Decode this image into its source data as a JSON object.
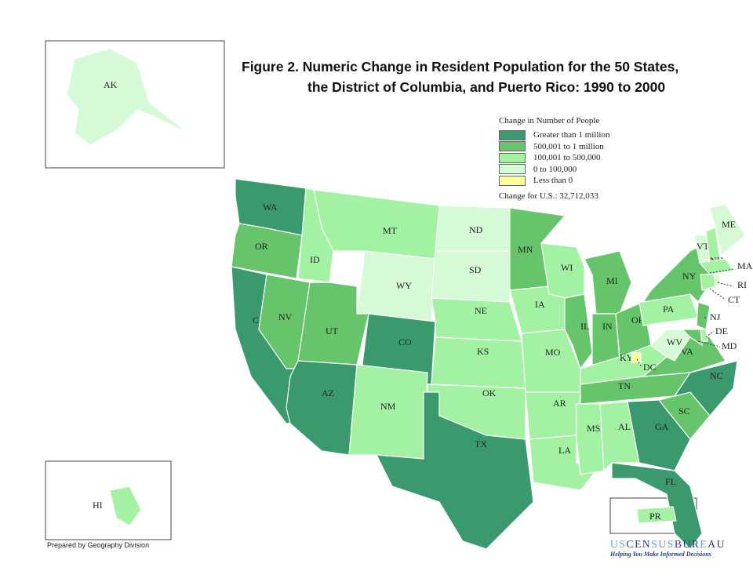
{
  "title": {
    "line1": "Figure 2.  Numeric Change in Resident Population for the 50 States,",
    "line2": "the District of Columbia, and Puerto Rico: 1990 to 2000"
  },
  "legend": {
    "title": "Change in Number of People",
    "items": [
      {
        "label": "Greater than 1 million",
        "color": "#3a9a6e"
      },
      {
        "label": "500,001 to 1 million",
        "color": "#66c46a"
      },
      {
        "label": "100,001 to 500,000",
        "color": "#a3f2a3"
      },
      {
        "label": "0 to 100,000",
        "color": "#d6fad6"
      },
      {
        "label": "Less than 0",
        "color": "#ffff99"
      }
    ],
    "total": "Change for U.S.: 32,712,033"
  },
  "states": [
    {
      "abbr": "WA",
      "cat": 0
    },
    {
      "abbr": "OR",
      "cat": 1
    },
    {
      "abbr": "CA",
      "cat": 0
    },
    {
      "abbr": "NV",
      "cat": 1
    },
    {
      "abbr": "ID",
      "cat": 2
    },
    {
      "abbr": "MT",
      "cat": 2
    },
    {
      "abbr": "WY",
      "cat": 3
    },
    {
      "abbr": "UT",
      "cat": 1
    },
    {
      "abbr": "CO",
      "cat": 0
    },
    {
      "abbr": "AZ",
      "cat": 0
    },
    {
      "abbr": "NM",
      "cat": 2
    },
    {
      "abbr": "ND",
      "cat": 3
    },
    {
      "abbr": "SD",
      "cat": 3
    },
    {
      "abbr": "NE",
      "cat": 2
    },
    {
      "abbr": "KS",
      "cat": 2
    },
    {
      "abbr": "OK",
      "cat": 2
    },
    {
      "abbr": "TX",
      "cat": 0
    },
    {
      "abbr": "MN",
      "cat": 1
    },
    {
      "abbr": "IA",
      "cat": 2
    },
    {
      "abbr": "MO",
      "cat": 2
    },
    {
      "abbr": "AR",
      "cat": 2
    },
    {
      "abbr": "LA",
      "cat": 2
    },
    {
      "abbr": "WI",
      "cat": 2
    },
    {
      "abbr": "IL",
      "cat": 1
    },
    {
      "abbr": "MI",
      "cat": 1
    },
    {
      "abbr": "IN",
      "cat": 1
    },
    {
      "abbr": "OH",
      "cat": 1
    },
    {
      "abbr": "KY",
      "cat": 2
    },
    {
      "abbr": "TN",
      "cat": 1
    },
    {
      "abbr": "MS",
      "cat": 2
    },
    {
      "abbr": "AL",
      "cat": 2
    },
    {
      "abbr": "GA",
      "cat": 0
    },
    {
      "abbr": "FL",
      "cat": 0
    },
    {
      "abbr": "SC",
      "cat": 1
    },
    {
      "abbr": "NC",
      "cat": 0
    },
    {
      "abbr": "VA",
      "cat": 1
    },
    {
      "abbr": "WV",
      "cat": 3
    },
    {
      "abbr": "PA",
      "cat": 2
    },
    {
      "abbr": "NY",
      "cat": 1
    },
    {
      "abbr": "NJ",
      "cat": 1
    },
    {
      "abbr": "DE",
      "cat": 2
    },
    {
      "abbr": "MD",
      "cat": 1
    },
    {
      "abbr": "VT",
      "cat": 3
    },
    {
      "abbr": "NH",
      "cat": 2
    },
    {
      "abbr": "ME",
      "cat": 3
    },
    {
      "abbr": "MA",
      "cat": 2
    },
    {
      "abbr": "CT",
      "cat": 2
    },
    {
      "abbr": "RI",
      "cat": 3
    },
    {
      "abbr": "DC",
      "cat": 4
    },
    {
      "abbr": "AK",
      "cat": 3
    },
    {
      "abbr": "HI",
      "cat": 2
    },
    {
      "abbr": "PR",
      "cat": 2
    }
  ],
  "footer": {
    "prepared": "Prepared by Geography Division",
    "logo_a": "US",
    "logo_b": "CENSUS",
    "logo_c": "BUREAU",
    "tagline": "Helping You Make Informed Decisions"
  }
}
